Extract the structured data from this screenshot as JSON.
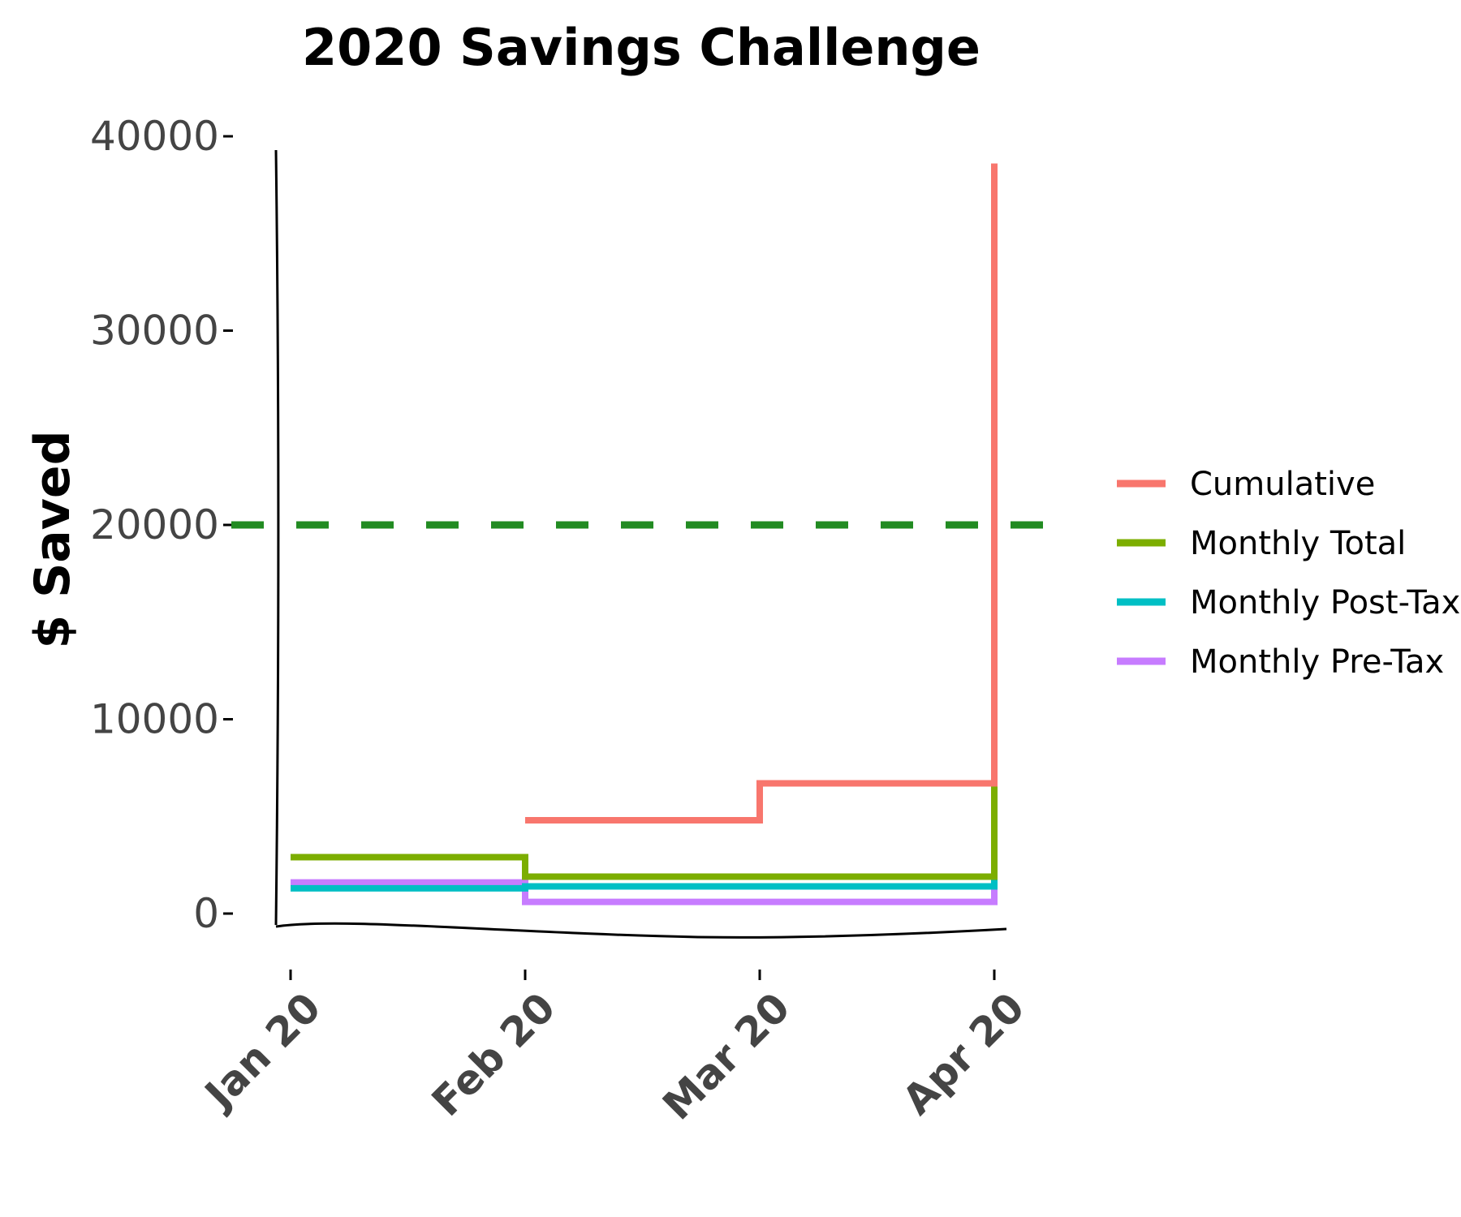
{
  "chart_data": {
    "type": "line",
    "title": "2020 Savings Challenge",
    "xlabel": "",
    "ylabel": "$ Saved",
    "x": [
      "2020-01-01",
      "2020-02-01",
      "2020-03-01",
      "2020-04-01"
    ],
    "x_tick_labels": [
      "Jan 20",
      "Feb 20",
      "Mar 20",
      "Apr 20"
    ],
    "y_ticks": [
      0,
      10000,
      20000,
      30000,
      40000
    ],
    "y_tick_labels": [
      "0",
      "10000",
      "20000",
      "30000",
      "40000"
    ],
    "ylim": [
      0,
      40000
    ],
    "step": "post",
    "grid": false,
    "legend_position": "right",
    "series": [
      {
        "name": "Cumulative",
        "color": "#F8766D",
        "values": [
          null,
          4800,
          6700,
          38600
        ]
      },
      {
        "name": "Monthly Total",
        "color": "#7CAE00",
        "values": [
          2900,
          1900,
          1900,
          32000
        ]
      },
      {
        "name": "Monthly Post-Tax",
        "color": "#00BFC4",
        "values": [
          1300,
          1400,
          1400,
          28500
        ]
      },
      {
        "name": "Monthly Pre-Tax",
        "color": "#C77CFF",
        "values": [
          1600,
          600,
          600,
          3600
        ]
      }
    ],
    "reference_line": {
      "y": 20000,
      "color": "#228B22",
      "style": "dashed"
    }
  }
}
